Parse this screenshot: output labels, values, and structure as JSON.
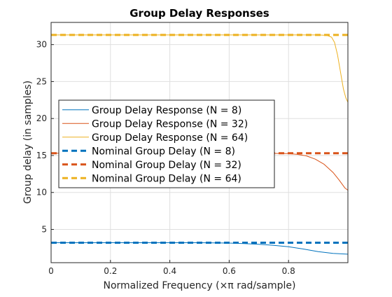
{
  "chart_data": {
    "type": "line",
    "title": "Group Delay Responses",
    "xlabel": "Normalized Frequency (×π rad/sample)",
    "ylabel": "Group delay (in samples)",
    "xlim": [
      0,
      1
    ],
    "ylim": [
      0.5,
      33
    ],
    "xticks": [
      0,
      0.2,
      0.4,
      0.6,
      0.8
    ],
    "xtick_labels": [
      "0",
      "0.2",
      "0.4",
      "0.6",
      "0.8"
    ],
    "yticks": [
      5,
      10,
      15,
      20,
      25,
      30
    ],
    "ytick_labels": [
      "5",
      "10",
      "15",
      "20",
      "25",
      "30"
    ],
    "grid": true,
    "legend_position": "left-middle",
    "series": [
      {
        "name": "Group Delay Response (N = 8)",
        "color": "#0072BD",
        "style": "solid",
        "x": [
          0,
          0.1,
          0.2,
          0.3,
          0.4,
          0.5,
          0.55,
          0.6,
          0.65,
          0.7,
          0.75,
          0.8,
          0.85,
          0.9,
          0.95,
          1.0
        ],
        "y": [
          3.2,
          3.2,
          3.2,
          3.2,
          3.2,
          3.2,
          3.18,
          3.15,
          3.08,
          2.98,
          2.85,
          2.65,
          2.35,
          2.0,
          1.75,
          1.65
        ]
      },
      {
        "name": "Group Delay Response (N = 32)",
        "color": "#D95319",
        "style": "solid",
        "x": [
          0,
          0.2,
          0.4,
          0.6,
          0.7,
          0.75,
          0.8,
          0.83,
          0.86,
          0.89,
          0.92,
          0.95,
          0.97,
          0.99,
          1.0
        ],
        "y": [
          15.3,
          15.3,
          15.3,
          15.3,
          15.3,
          15.28,
          15.25,
          15.15,
          14.95,
          14.5,
          13.8,
          12.7,
          11.7,
          10.6,
          10.3
        ]
      },
      {
        "name": "Group Delay Response (N = 64)",
        "color": "#EDB120",
        "style": "solid",
        "x": [
          0,
          0.2,
          0.4,
          0.6,
          0.8,
          0.9,
          0.93,
          0.945,
          0.955,
          0.965,
          0.975,
          0.985,
          0.993,
          1.0
        ],
        "y": [
          31.3,
          31.3,
          31.3,
          31.3,
          31.3,
          31.3,
          31.25,
          31.0,
          30.3,
          28.6,
          26.3,
          24.0,
          22.8,
          22.2
        ]
      },
      {
        "name": "Nominal Group Delay (N = 8)",
        "color": "#0072BD",
        "style": "dashed",
        "x": [
          0,
          1
        ],
        "y": [
          3.2,
          3.2
        ]
      },
      {
        "name": "Nominal Group Delay (N = 32)",
        "color": "#D95319",
        "style": "dashed",
        "x": [
          0,
          1
        ],
        "y": [
          15.3,
          15.3
        ]
      },
      {
        "name": "Nominal Group Delay (N = 64)",
        "color": "#EDB120",
        "style": "dashed",
        "x": [
          0,
          1
        ],
        "y": [
          31.3,
          31.3
        ]
      }
    ]
  }
}
